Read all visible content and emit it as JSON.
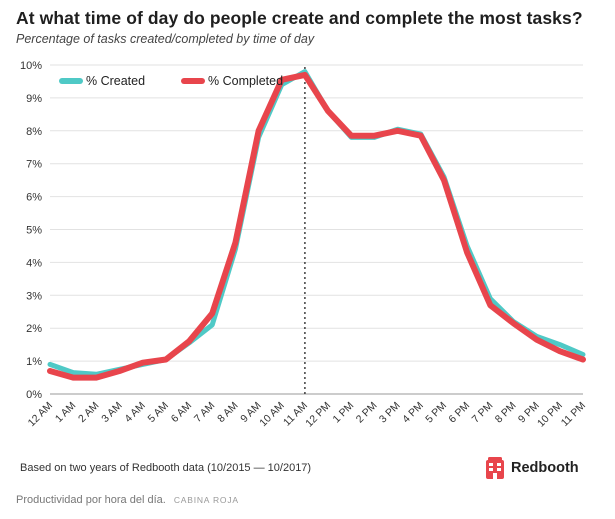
{
  "chart_data": {
    "type": "line",
    "title": "At what time of day do people create and complete the most tasks?",
    "subtitle": "Percentage of tasks created/completed by time of day",
    "xlabel": "",
    "ylabel": "",
    "categories": [
      "12 AM",
      "1 AM",
      "2 AM",
      "3 AM",
      "4 AM",
      "5 AM",
      "6 AM",
      "7 AM",
      "8 AM",
      "9 AM",
      "10 AM",
      "11 AM",
      "12 PM",
      "1 PM",
      "2 PM",
      "3 PM",
      "4 PM",
      "5 PM",
      "6 PM",
      "7 PM",
      "8 PM",
      "9 PM",
      "10 PM",
      "11 PM"
    ],
    "y_ticks": [
      "0%",
      "1%",
      "2%",
      "3%",
      "4%",
      "5%",
      "6%",
      "7%",
      "8%",
      "9%",
      "10%"
    ],
    "ylim": [
      0,
      10
    ],
    "series": [
      {
        "name": "% Created",
        "color": "#4fc9c6",
        "values": [
          0.9,
          0.65,
          0.6,
          0.75,
          0.9,
          1.05,
          1.55,
          2.1,
          4.4,
          7.8,
          9.4,
          9.8,
          8.6,
          7.8,
          7.8,
          8.05,
          7.9,
          6.6,
          4.5,
          2.9,
          2.2,
          1.75,
          1.5,
          1.2
        ]
      },
      {
        "name": "% Completed",
        "color": "#e8454c",
        "values": [
          0.7,
          0.5,
          0.5,
          0.7,
          0.95,
          1.05,
          1.6,
          2.45,
          4.6,
          8.0,
          9.55,
          9.7,
          8.6,
          7.85,
          7.85,
          8.0,
          7.85,
          6.5,
          4.3,
          2.7,
          2.15,
          1.65,
          1.3,
          1.05
        ]
      }
    ],
    "reference_line": {
      "category": "11 AM",
      "style": "dotted"
    },
    "grid": "horizontal",
    "legend_position": "top-left"
  },
  "footnote": "Based on two years of Redbooth data (10/2015 — 10/2017)",
  "brand": {
    "name": "Redbooth",
    "icon": "redbooth-booth-icon",
    "color": "#e8454c"
  },
  "caption": {
    "text": "Productividad por hora del día.",
    "credit": "CABINA ROJA"
  }
}
